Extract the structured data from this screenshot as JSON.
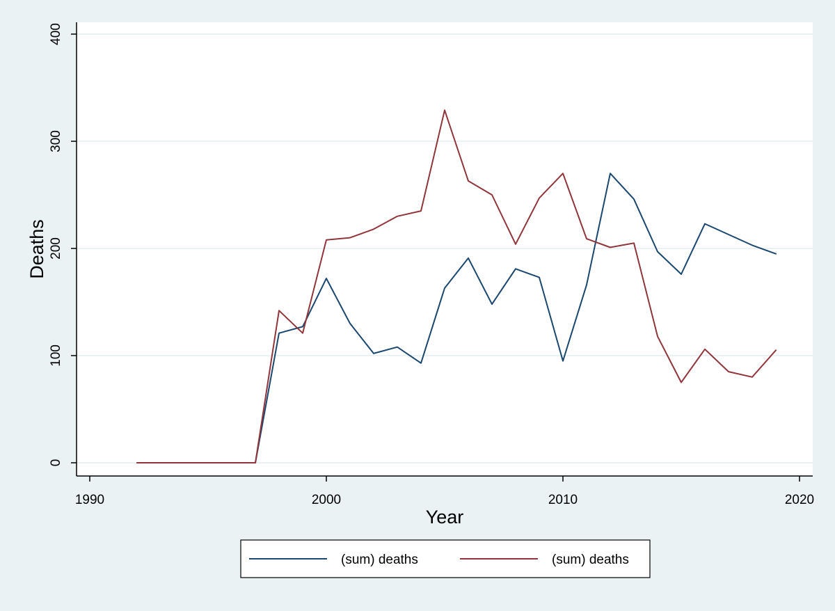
{
  "chart_data": {
    "type": "line",
    "title": "",
    "xlabel": "Year",
    "ylabel": "Deaths",
    "xlim": [
      1990,
      2020
    ],
    "ylim": [
      0,
      400
    ],
    "x_ticks": [
      1990,
      2000,
      2010,
      2020
    ],
    "y_ticks": [
      0,
      100,
      200,
      300,
      400
    ],
    "x_tick_labels": [
      "1990",
      "2000",
      "2010",
      "2020"
    ],
    "y_tick_labels": [
      "0",
      "100",
      "200",
      "300",
      "400"
    ],
    "grid": "horizontal",
    "legend_position": "bottom",
    "x": [
      1992,
      1993,
      1994,
      1995,
      1996,
      1997,
      1998,
      1999,
      2000,
      2001,
      2002,
      2003,
      2004,
      2005,
      2006,
      2007,
      2008,
      2009,
      2010,
      2011,
      2012,
      2013,
      2014,
      2015,
      2016,
      2017,
      2018,
      2019
    ],
    "series": [
      {
        "name": "(sum) deaths",
        "color": "#1a476f",
        "values": [
          0,
          0,
          0,
          0,
          0,
          0,
          121,
          127,
          172,
          130,
          102,
          108,
          93,
          163,
          191,
          148,
          181,
          173,
          95,
          166,
          270,
          246,
          197,
          176,
          223,
          213,
          203,
          195
        ]
      },
      {
        "name": "(sum) deaths",
        "color": "#90353b",
        "values": [
          0,
          0,
          0,
          0,
          0,
          0,
          142,
          121,
          208,
          210,
          218,
          230,
          235,
          329,
          263,
          250,
          204,
          247,
          270,
          209,
          201,
          205,
          118,
          75,
          106,
          85,
          80,
          105
        ]
      }
    ]
  },
  "colors": {
    "background": "#eaf2f3",
    "plot_area": "#ffffff",
    "gridline": "#eaf2f3"
  }
}
